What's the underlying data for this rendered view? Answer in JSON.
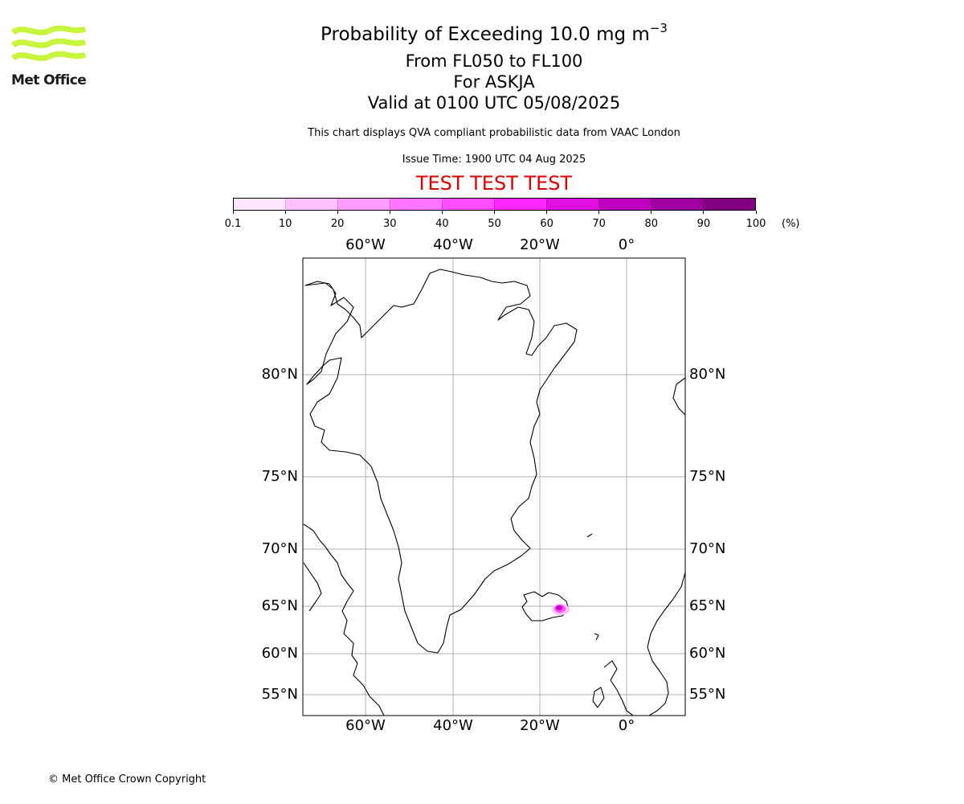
{
  "logo": {
    "text": "Met Office",
    "color": "#c8f53c"
  },
  "title": {
    "main": "Probability of Exceeding 10.0 mg m",
    "superscript": "−3",
    "levels": "From FL050 to FL100",
    "volcano": "For ASKJA",
    "valid": "Valid at 0100 UTC 05/08/2025",
    "description": "This chart displays QVA compliant probabilistic data from VAAC London",
    "issue": "Issue Time: 1900 UTC 04 Aug 2025",
    "test_banner": "TEST TEST TEST"
  },
  "colorbar": {
    "ticks": [
      "0.1",
      "10",
      "20",
      "30",
      "40",
      "50",
      "60",
      "70",
      "80",
      "90",
      "100"
    ],
    "unit": "(%)",
    "colors": [
      "#ffe6ff",
      "#ffc2ff",
      "#ff9cff",
      "#ff75ff",
      "#ff4dff",
      "#ff26ff",
      "#e010e0",
      "#c000c0",
      "#a000a0",
      "#800080"
    ]
  },
  "map": {
    "lon_labels": [
      "60°W",
      "40°W",
      "20°W",
      "0°"
    ],
    "lat_labels": [
      "80°N",
      "75°N",
      "70°N",
      "65°N",
      "60°N",
      "55°N"
    ],
    "grid_color": "#b0b0b0",
    "plume_colors": [
      "#ffc2ff",
      "#ff4dff",
      "#c000c0"
    ]
  },
  "copyright": "© Met Office Crown Copyright"
}
